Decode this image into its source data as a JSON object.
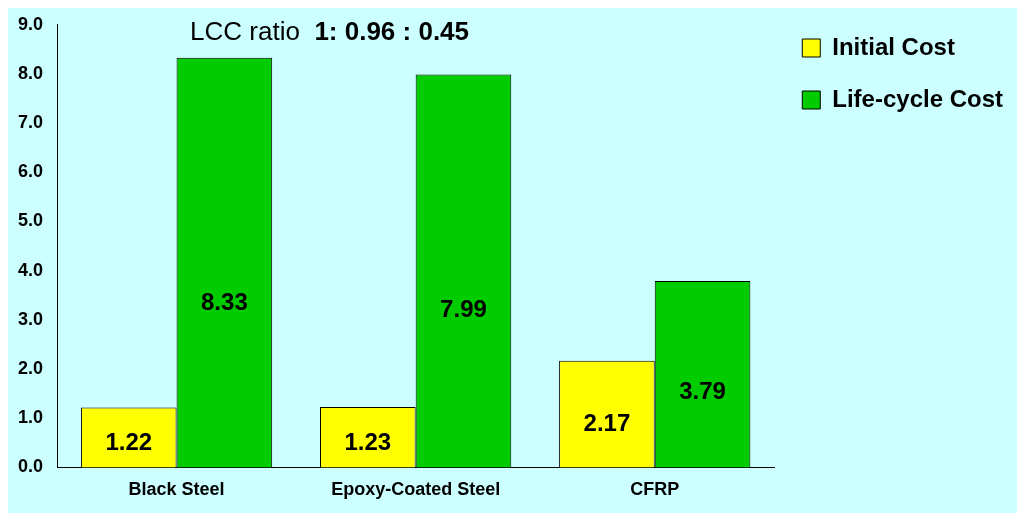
{
  "chart_data": {
    "type": "bar",
    "title": "LCC ratio",
    "subtitle": "1: 0.96 : 0.45",
    "categories": [
      "Black Steel",
      "Epoxy-Coated Steel",
      "CFRP"
    ],
    "series": [
      {
        "name": "Initial Cost",
        "color": "#ffff00",
        "values": [
          1.22,
          1.23,
          2.17
        ]
      },
      {
        "name": "Life-cycle Cost",
        "color": "#00cc00",
        "values": [
          8.33,
          7.99,
          3.79
        ]
      }
    ],
    "ylim": [
      0,
      9
    ],
    "yticks": [
      {
        "value": 0,
        "label": "0.0"
      },
      {
        "value": 1,
        "label": "1.0"
      },
      {
        "value": 2,
        "label": "2.0"
      },
      {
        "value": 3,
        "label": "3.0"
      },
      {
        "value": 4,
        "label": "4.0"
      },
      {
        "value": 5,
        "label": "5.0"
      },
      {
        "value": 6,
        "label": "6.0"
      },
      {
        "value": 7,
        "label": "7.0"
      },
      {
        "value": 8,
        "label": "8.0"
      },
      {
        "value": 9,
        "label": "9.0"
      }
    ],
    "grid": false,
    "legend": "right",
    "data_labels": true
  }
}
